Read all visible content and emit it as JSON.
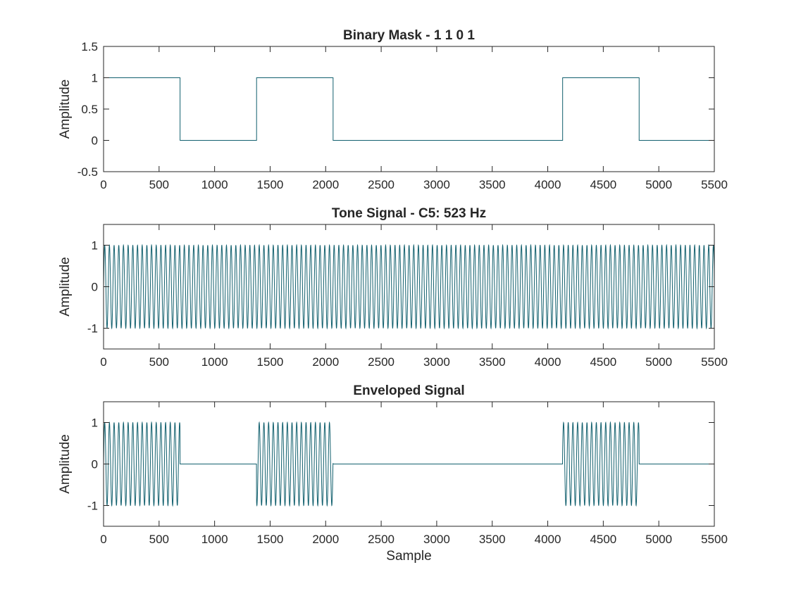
{
  "chart_data": [
    {
      "type": "line",
      "title": "Binary Mask - 1 1 0 1",
      "xlabel": "",
      "ylabel": "Amplitude",
      "xlim": [
        0,
        5500
      ],
      "ylim": [
        -0.5,
        1.5
      ],
      "xticks": [
        "0",
        "500",
        "1000",
        "1500",
        "2000",
        "2500",
        "3000",
        "3500",
        "4000",
        "4500",
        "5000",
        "5500"
      ],
      "yticks": [
        "-0.5",
        "0",
        "0.5",
        "1",
        "1.5"
      ],
      "color": "#12606e",
      "signal": {
        "kind": "step",
        "points": [
          [
            0,
            1
          ],
          [
            689,
            1
          ],
          [
            689,
            0
          ],
          [
            1378,
            0
          ],
          [
            1378,
            1
          ],
          [
            2067,
            1
          ],
          [
            2067,
            0
          ],
          [
            4134,
            0
          ],
          [
            4134,
            1
          ],
          [
            4823,
            1
          ],
          [
            4823,
            0
          ],
          [
            5500,
            0
          ]
        ]
      }
    },
    {
      "type": "line",
      "title": "Tone Signal - C5: 523 Hz",
      "xlabel": "",
      "ylabel": "Amplitude",
      "xlim": [
        0,
        5500
      ],
      "ylim": [
        -1.5,
        1.5
      ],
      "xticks": [
        "0",
        "500",
        "1000",
        "1500",
        "2000",
        "2500",
        "3000",
        "3500",
        "4000",
        "4500",
        "5000",
        "5500"
      ],
      "yticks": [
        "-1",
        "0",
        "1"
      ],
      "color": "#12606e",
      "signal": {
        "kind": "tone",
        "amplitude": 1,
        "frequency_hz": 523,
        "sample_rate_hz": 22050,
        "active_ranges": [
          [
            0,
            5500
          ]
        ]
      }
    },
    {
      "type": "line",
      "title": "Enveloped Signal",
      "xlabel": "Sample",
      "ylabel": "Amplitude",
      "xlim": [
        0,
        5500
      ],
      "ylim": [
        -1.5,
        1.5
      ],
      "xticks": [
        "0",
        "500",
        "1000",
        "1500",
        "2000",
        "2500",
        "3000",
        "3500",
        "4000",
        "4500",
        "5000",
        "5500"
      ],
      "yticks": [
        "-1",
        "0",
        "1"
      ],
      "color": "#12606e",
      "signal": {
        "kind": "tone",
        "amplitude": 1,
        "frequency_hz": 523,
        "sample_rate_hz": 22050,
        "active_ranges": [
          [
            0,
            689
          ],
          [
            1378,
            2067
          ],
          [
            4134,
            4823
          ]
        ]
      }
    }
  ]
}
